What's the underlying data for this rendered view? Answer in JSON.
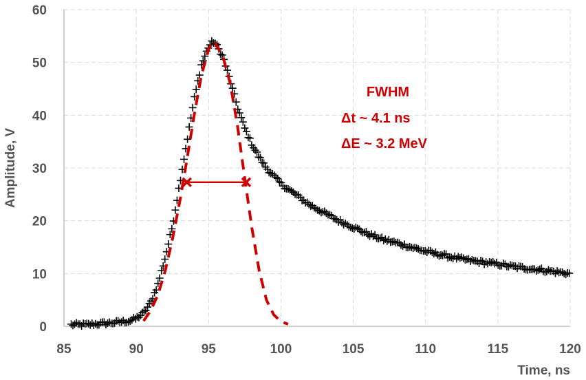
{
  "chart_data": {
    "type": "scatter",
    "title": "",
    "xlabel": "Time, ns",
    "ylabel": "Amplitude, V",
    "xlim": [
      85,
      120
    ],
    "ylim": [
      0,
      60
    ],
    "x_ticks": [
      85,
      90,
      95,
      100,
      105,
      110,
      115,
      120
    ],
    "y_ticks": [
      0,
      10,
      20,
      30,
      40,
      50,
      60
    ],
    "x_tick_labels": [
      "85",
      "90",
      "95",
      "100",
      "105",
      "110",
      "115",
      "120"
    ],
    "y_tick_labels": [
      "0",
      "10",
      "20",
      "30",
      "40",
      "50",
      "60"
    ],
    "grid": true,
    "colors": {
      "measured": "#000000",
      "fit": "#d00000",
      "text": "#d00000",
      "axis_text": "#555555",
      "grid": "#d9d9d9"
    },
    "series": [
      {
        "marker": "plus",
        "x": [
          85.5,
          86.5,
          87.5,
          88.5,
          89.5,
          90.0,
          90.5,
          91.0,
          91.5,
          92.0,
          92.5,
          93.0,
          93.5,
          94.0,
          94.5,
          95.0,
          95.3,
          95.5,
          96.0,
          96.5,
          97.0,
          97.5,
          98.0,
          98.5,
          99.0,
          100.0,
          101.0,
          102.0,
          103.0,
          104.0,
          105.0,
          106.0,
          107.0,
          108.0,
          109.0,
          110.0,
          111.0,
          112.0,
          113.0,
          114.0,
          115.0,
          116.0,
          117.0,
          118.0,
          119.0,
          120.0
        ],
        "y": [
          0.3,
          0.3,
          0.5,
          0.7,
          1.0,
          1.5,
          2.5,
          4.5,
          8.0,
          13.0,
          19.0,
          27.0,
          35.0,
          43.0,
          49.5,
          53.0,
          54.0,
          53.5,
          51.0,
          46.5,
          41.5,
          37.5,
          34.5,
          32.0,
          30.0,
          27.0,
          25.0,
          23.0,
          21.5,
          20.0,
          18.8,
          17.5,
          16.5,
          15.8,
          15.0,
          14.2,
          13.6,
          13.0,
          12.5,
          12.1,
          11.8,
          11.3,
          11.0,
          10.7,
          10.3,
          10.0
        ]
      },
      {
        "line": "dashed",
        "x": [
          90.5,
          91.0,
          91.5,
          92.0,
          92.5,
          93.0,
          93.5,
          94.0,
          94.5,
          95.0,
          95.3,
          95.5,
          96.0,
          96.5,
          97.0,
          97.5,
          98.0,
          98.5,
          99.0,
          99.5,
          100.0,
          100.5
        ],
        "y": [
          1.0,
          3.0,
          6.0,
          10.5,
          16.5,
          23.5,
          31.5,
          40.0,
          47.5,
          52.5,
          54.0,
          53.5,
          51.0,
          46.0,
          38.0,
          28.0,
          18.5,
          10.5,
          5.0,
          2.2,
          0.9,
          0.4
        ]
      }
    ],
    "fwhm_marker": {
      "x_start": 93.5,
      "x_end": 97.6,
      "y": 27.3
    },
    "annotations": [
      "FWHM",
      "Δt ~ 4.1 ns",
      "ΔE ~ 3.2 MeV"
    ]
  }
}
